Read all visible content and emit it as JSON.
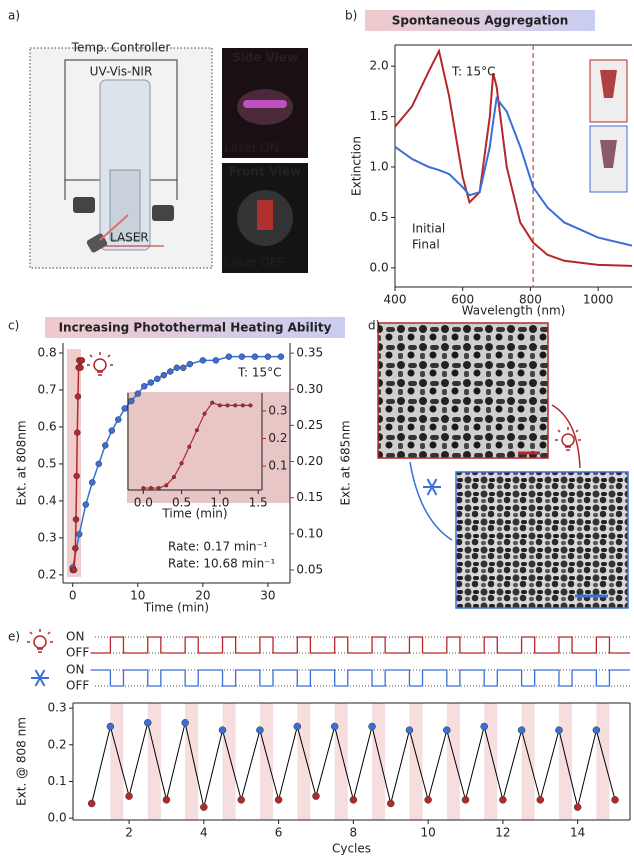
{
  "panel_labels": [
    "a)",
    "b)",
    "c)",
    "d)",
    "e)"
  ],
  "panel_a": {
    "controller": "Temp. Controller",
    "spectrometer": "UV-Vis-NIR",
    "laser": "LASER",
    "side_view": "Side View",
    "laser_on": "Laser ON",
    "front_view": "Front View",
    "laser_off": "Laser OFF"
  },
  "chart_data": [
    {
      "type": "line",
      "title": "Spontaneous Aggregation",
      "annotation": "T: 15°C",
      "x_label": "Wavelength (nm)",
      "y_label": "Extinction",
      "xlim": [
        400,
        1100
      ],
      "ylim": [
        -0.19,
        2.21
      ],
      "xticks": [
        400,
        600,
        800,
        1000
      ],
      "yticks": [
        {
          "value": 0,
          "label": "0.0"
        },
        0.5,
        {
          "value": 1,
          "label": "1.0"
        },
        1.5,
        {
          "value": 2,
          "label": "2.0"
        }
      ],
      "vline": 808,
      "x": [
        400,
        450,
        500,
        530,
        560,
        600,
        620,
        650,
        680,
        690,
        700,
        730,
        770,
        808,
        850,
        900,
        1000,
        1100
      ],
      "series": [
        {
          "name": "Initial",
          "color": "#b5282a",
          "values": [
            1.4,
            1.6,
            1.95,
            2.15,
            1.7,
            0.9,
            0.65,
            0.75,
            1.5,
            1.93,
            1.8,
            1.0,
            0.45,
            0.25,
            0.13,
            0.07,
            0.03,
            0.02
          ]
        },
        {
          "name": "Final",
          "color": "#3b6fd8",
          "values": [
            1.2,
            1.08,
            1.0,
            0.97,
            0.93,
            0.8,
            0.72,
            0.75,
            1.2,
            1.45,
            1.68,
            1.55,
            1.2,
            0.8,
            0.6,
            0.45,
            0.3,
            0.22
          ]
        }
      ]
    },
    {
      "type": "dual",
      "title": "Increasing Photothermal Heating Ability",
      "annotation": "T: 15°C",
      "x_label": "Time (min)",
      "y_label": "Ext. at 808nm",
      "y2_label": "Ext. at 685nm",
      "xlim": [
        -1.5,
        33.4
      ],
      "ylim": [
        0.178,
        0.827
      ],
      "y2lim": [
        0.032,
        0.364
      ],
      "xticks": [
        0,
        10,
        20,
        30
      ],
      "yticks": [
        0.2,
        0.3,
        0.4,
        0.5,
        0.6,
        0.7,
        0.8
      ],
      "y2ticks": [
        0.05,
        {
          "value": 0.1,
          "label": "0.10"
        },
        0.15,
        {
          "value": 0.2,
          "label": "0.20"
        },
        0.25,
        {
          "value": 0.3,
          "label": "0.30"
        },
        0.35
      ],
      "series": [
        {
          "color": "#3b6fd8",
          "label": "Rate: 0.17 min⁻¹",
          "x": [
            0,
            1,
            2,
            3,
            4,
            5,
            6,
            7,
            8,
            9,
            10,
            11,
            12,
            13,
            14,
            15,
            16,
            17,
            18,
            20,
            22,
            24,
            26,
            28,
            30,
            32
          ],
          "values": [
            0.22,
            0.31,
            0.39,
            0.45,
            0.5,
            0.55,
            0.59,
            0.62,
            0.65,
            0.67,
            0.69,
            0.71,
            0.72,
            0.73,
            0.74,
            0.75,
            0.76,
            0.76,
            0.77,
            0.78,
            0.78,
            0.79,
            0.79,
            0.79,
            0.79,
            0.79
          ]
        },
        {
          "color": "#b5282a",
          "axis": "y2",
          "label": "Rate: 10.68 min⁻¹",
          "x": [
            0,
            0.2,
            0.4,
            0.5,
            0.6,
            0.7,
            0.8,
            0.9,
            1.0,
            1.2,
            1.4
          ],
          "values": [
            0.05,
            0.05,
            0.08,
            0.12,
            0.18,
            0.24,
            0.29,
            0.33,
            0.34,
            0.33,
            0.34
          ]
        }
      ]
    },
    {
      "type": "inset",
      "x_label": "Time (min)",
      "xlim": [
        -0.2,
        1.55
      ],
      "ylim": [
        0.013,
        0.365
      ],
      "xticks": [
        {
          "value": 0,
          "label": "0.0"
        },
        0.5,
        {
          "value": 1,
          "label": "1.0"
        },
        1.5
      ],
      "yticks": [
        0.1,
        0.2,
        0.3
      ],
      "series": [
        {
          "color": "#b5282a",
          "x": [
            0,
            0.1,
            0.2,
            0.3,
            0.4,
            0.5,
            0.6,
            0.7,
            0.8,
            0.9,
            1.0,
            1.1,
            1.2,
            1.3,
            1.4
          ],
          "values": [
            0.02,
            0.02,
            0.02,
            0.03,
            0.06,
            0.11,
            0.17,
            0.23,
            0.29,
            0.33,
            0.32,
            0.32,
            0.32,
            0.32,
            0.32
          ]
        }
      ]
    },
    {
      "type": "step",
      "xlim": [
        0.5,
        15.4
      ],
      "yticks": [
        {
          "value": 1,
          "label": "ON"
        },
        {
          "value": 0,
          "label": "OFF"
        }
      ],
      "x": [
        0.97,
        1.5,
        1.85,
        2.5,
        2.85,
        3.5,
        3.85,
        4.5,
        4.85,
        5.5,
        5.85,
        6.5,
        6.85,
        7.5,
        7.85,
        8.5,
        8.85,
        9.5,
        9.85,
        10.5,
        10.85,
        11.5,
        11.85,
        12.5,
        12.85,
        13.5,
        13.85,
        14.5,
        14.85
      ],
      "series": [
        {
          "color": "#b5282a",
          "values": [
            0,
            1,
            0,
            1,
            0,
            1,
            0,
            1,
            0,
            1,
            0,
            1,
            0,
            1,
            0,
            1,
            0,
            1,
            0,
            1,
            0,
            1,
            0,
            1,
            0,
            1,
            0,
            1,
            0
          ]
        },
        {
          "color": "#3b6fd8",
          "values": [
            1,
            0,
            1,
            0,
            1,
            0,
            1,
            0,
            1,
            0,
            1,
            0,
            1,
            0,
            1,
            0,
            1,
            0,
            1,
            0,
            1,
            0,
            1,
            0,
            1,
            0,
            1,
            0,
            1
          ]
        }
      ]
    },
    {
      "type": "cycles",
      "x_label": "Cycles",
      "y_label": "Ext. @ 808 nm",
      "xlim": [
        0.5,
        15.4
      ],
      "ylim": [
        -0.005,
        0.314
      ],
      "xticks": [
        2,
        4,
        6,
        8,
        10,
        12,
        14
      ],
      "yticks": [
        {
          "value": 0,
          "label": "0.0"
        },
        0.1,
        0.2,
        0.3
      ],
      "bands": [
        [
          1.5,
          1.85
        ],
        [
          2.5,
          2.85
        ],
        [
          3.5,
          3.85
        ],
        [
          4.5,
          4.85
        ],
        [
          5.5,
          5.85
        ],
        [
          6.5,
          6.85
        ],
        [
          7.5,
          7.85
        ],
        [
          8.5,
          8.85
        ],
        [
          9.5,
          9.85
        ],
        [
          10.5,
          10.85
        ],
        [
          11.5,
          11.85
        ],
        [
          12.5,
          12.85
        ],
        [
          13.5,
          13.85
        ],
        [
          14.5,
          14.85
        ]
      ],
      "band_color": "#f6dede",
      "line_color": "#000000",
      "x": [
        1,
        1.5,
        2,
        2.5,
        3,
        3.5,
        4,
        4.5,
        5,
        5.5,
        6,
        6.5,
        7,
        7.5,
        8,
        8.5,
        9,
        9.5,
        10,
        10.5,
        11,
        11.5,
        12,
        12.5,
        13,
        13.5,
        14,
        14.5,
        15
      ],
      "values": [
        0.04,
        0.25,
        0.06,
        0.26,
        0.05,
        0.26,
        0.03,
        0.24,
        0.05,
        0.24,
        0.05,
        0.25,
        0.06,
        0.25,
        0.05,
        0.25,
        0.04,
        0.24,
        0.05,
        0.24,
        0.05,
        0.25,
        0.05,
        0.24,
        0.05,
        0.24,
        0.03,
        0.24,
        0.05
      ],
      "colors": [
        "#b5282a",
        "#3b6fd8",
        "#b5282a",
        "#3b6fd8",
        "#b5282a",
        "#3b6fd8",
        "#b5282a",
        "#3b6fd8",
        "#b5282a",
        "#3b6fd8",
        "#b5282a",
        "#3b6fd8",
        "#b5282a",
        "#3b6fd8",
        "#b5282a",
        "#3b6fd8",
        "#b5282a",
        "#3b6fd8",
        "#b5282a",
        "#3b6fd8",
        "#b5282a",
        "#3b6fd8",
        "#b5282a",
        "#3b6fd8",
        "#b5282a",
        "#3b6fd8",
        "#b5282a",
        "#3b6fd8",
        "#b5282a"
      ]
    }
  ]
}
